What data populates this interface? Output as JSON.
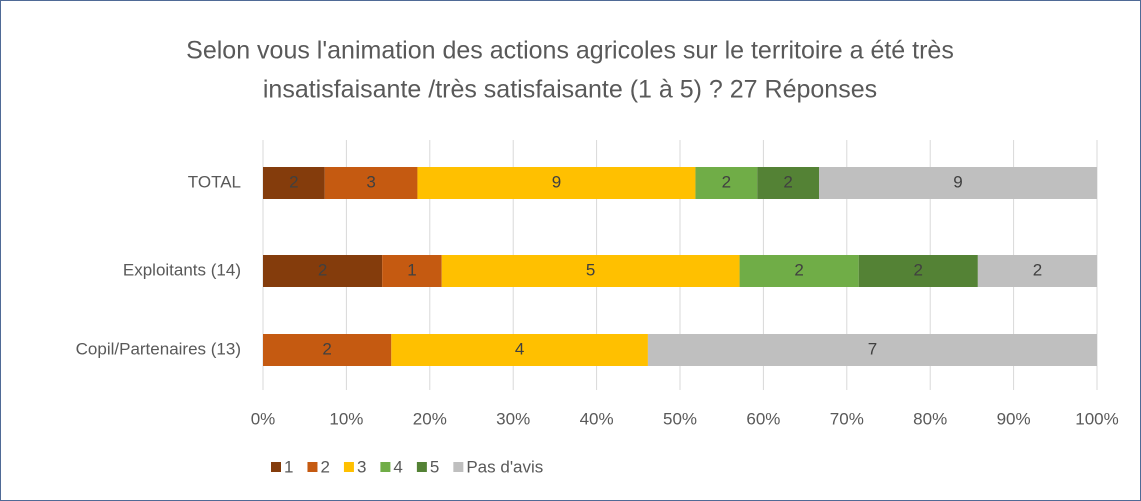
{
  "chart_data": {
    "type": "bar",
    "orientation": "horizontal",
    "stacking": "percent",
    "title": [
      "Selon vous l'animation des actions agricoles sur le territoire a été très",
      "insatisfaisante /très satisfaisante (1 à 5) ? 27 Réponses"
    ],
    "categories": [
      "TOTAL",
      "Exploitants (14)",
      "Copil/Partenaires (13)"
    ],
    "series": [
      {
        "name": "1",
        "color": "#843c0c",
        "values": [
          2,
          2,
          0
        ]
      },
      {
        "name": "2",
        "color": "#c55a11",
        "values": [
          3,
          1,
          2
        ]
      },
      {
        "name": "3",
        "color": "#ffc000",
        "values": [
          9,
          5,
          4
        ]
      },
      {
        "name": "4",
        "color": "#70ad47",
        "values": [
          2,
          2,
          0
        ]
      },
      {
        "name": "5",
        "color": "#548235",
        "values": [
          2,
          2,
          0
        ]
      },
      {
        "name": "Pas d'avis",
        "color": "#bfbfbf",
        "values": [
          9,
          2,
          7
        ]
      }
    ],
    "xlim": [
      0,
      100
    ],
    "xticks": [
      {
        "value": 0,
        "label": "0%"
      },
      {
        "value": 10,
        "label": "10%"
      },
      {
        "value": 20,
        "label": "20%"
      },
      {
        "value": 30,
        "label": "30%"
      },
      {
        "value": 40,
        "label": "40%"
      },
      {
        "value": 50,
        "label": "50%"
      },
      {
        "value": 60,
        "label": "60%"
      },
      {
        "value": 70,
        "label": "70%"
      },
      {
        "value": 80,
        "label": "80%"
      },
      {
        "value": 90,
        "label": "90%"
      },
      {
        "value": 100,
        "label": "100%"
      }
    ],
    "grid": true,
    "legend": "bottom"
  }
}
